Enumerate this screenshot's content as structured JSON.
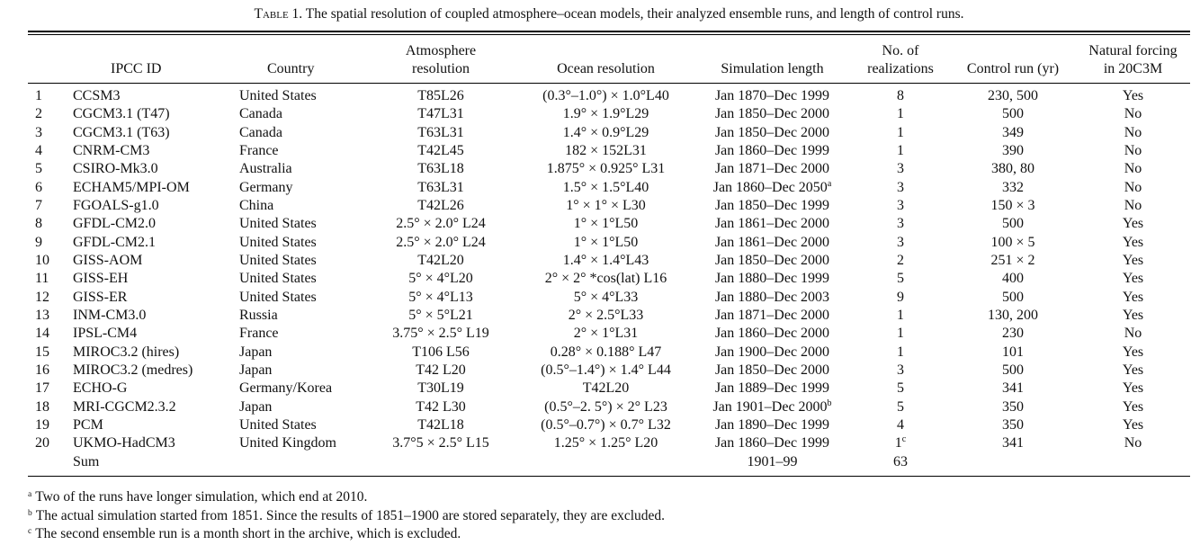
{
  "caption": {
    "label": "Table 1.",
    "text": "The spatial resolution of coupled atmosphere–ocean models, their analyzed ensemble runs, and length of control runs."
  },
  "columns": {
    "num": "",
    "ipcc_id": "IPCC ID",
    "country": "Country",
    "atm_line1": "Atmosphere",
    "atm_line2": "resolution",
    "ocean": "Ocean resolution",
    "sim": "Simulation length",
    "real_line1": "No. of",
    "real_line2": "realizations",
    "control": "Control run (yr)",
    "nat_line1": "Natural forcing",
    "nat_line2": "in 20C3M"
  },
  "rows": [
    {
      "num": "1",
      "id": "CCSM3",
      "country": "United States",
      "atm": "T85L26",
      "ocean": "(0.3°–1.0°) × 1.0°L40",
      "sim": "Jan 1870–Dec 1999",
      "sim_note": "",
      "real": "8",
      "real_note": "",
      "control": "230, 500",
      "natural": "Yes"
    },
    {
      "num": "2",
      "id": "CGCM3.1 (T47)",
      "country": "Canada",
      "atm": "T47L31",
      "ocean": "1.9° × 1.9°L29",
      "sim": "Jan 1850–Dec 2000",
      "sim_note": "",
      "real": "1",
      "real_note": "",
      "control": "500",
      "natural": "No"
    },
    {
      "num": "3",
      "id": "CGCM3.1 (T63)",
      "country": "Canada",
      "atm": "T63L31",
      "ocean": "1.4° × 0.9°L29",
      "sim": "Jan 1850–Dec 2000",
      "sim_note": "",
      "real": "1",
      "real_note": "",
      "control": "349",
      "natural": "No"
    },
    {
      "num": "4",
      "id": "CNRM-CM3",
      "country": "France",
      "atm": "T42L45",
      "ocean": "182 × 152L31",
      "sim": "Jan 1860–Dec 1999",
      "sim_note": "",
      "real": "1",
      "real_note": "",
      "control": "390",
      "natural": "No"
    },
    {
      "num": "5",
      "id": "CSIRO-Mk3.0",
      "country": "Australia",
      "atm": "T63L18",
      "ocean": "1.875° × 0.925° L31",
      "sim": "Jan 1871–Dec 2000",
      "sim_note": "",
      "real": "3",
      "real_note": "",
      "control": "380, 80",
      "natural": "No"
    },
    {
      "num": "6",
      "id": "ECHAM5/MPI-OM",
      "country": "Germany",
      "atm": "T63L31",
      "ocean": "1.5° × 1.5°L40",
      "sim": "Jan 1860–Dec 2050",
      "sim_note": "a",
      "real": "3",
      "real_note": "",
      "control": "332",
      "natural": "No"
    },
    {
      "num": "7",
      "id": "FGOALS-g1.0",
      "country": "China",
      "atm": "T42L26",
      "ocean": "1° × 1° × L30",
      "sim": "Jan 1850–Dec 1999",
      "sim_note": "",
      "real": "3",
      "real_note": "",
      "control": "150 × 3",
      "natural": "No"
    },
    {
      "num": "8",
      "id": "GFDL-CM2.0",
      "country": "United States",
      "atm": "2.5° × 2.0° L24",
      "ocean": "1° × 1°L50",
      "sim": "Jan 1861–Dec 2000",
      "sim_note": "",
      "real": "3",
      "real_note": "",
      "control": "500",
      "natural": "Yes"
    },
    {
      "num": "9",
      "id": "GFDL-CM2.1",
      "country": "United States",
      "atm": "2.5° × 2.0° L24",
      "ocean": "1° × 1°L50",
      "sim": "Jan 1861–Dec 2000",
      "sim_note": "",
      "real": "3",
      "real_note": "",
      "control": "100 × 5",
      "natural": "Yes"
    },
    {
      "num": "10",
      "id": "GISS-AOM",
      "country": "United States",
      "atm": "T42L20",
      "ocean": "1.4° × 1.4°L43",
      "sim": "Jan 1850–Dec 2000",
      "sim_note": "",
      "real": "2",
      "real_note": "",
      "control": "251 × 2",
      "natural": "Yes"
    },
    {
      "num": "11",
      "id": "GISS-EH",
      "country": "United States",
      "atm": "5° × 4°L20",
      "ocean": "2° × 2° *cos(lat) L16",
      "sim": "Jan 1880–Dec 1999",
      "sim_note": "",
      "real": "5",
      "real_note": "",
      "control": "400",
      "natural": "Yes"
    },
    {
      "num": "12",
      "id": "GISS-ER",
      "country": "United States",
      "atm": "5° × 4°L13",
      "ocean": "5° × 4°L33",
      "sim": "Jan 1880–Dec 2003",
      "sim_note": "",
      "real": "9",
      "real_note": "",
      "control": "500",
      "natural": "Yes"
    },
    {
      "num": "13",
      "id": "INM-CM3.0",
      "country": "Russia",
      "atm": "5° × 5°L21",
      "ocean": "2° × 2.5°L33",
      "sim": "Jan 1871–Dec 2000",
      "sim_note": "",
      "real": "1",
      "real_note": "",
      "control": "130, 200",
      "natural": "Yes"
    },
    {
      "num": "14",
      "id": "IPSL-CM4",
      "country": "France",
      "atm": "3.75° × 2.5° L19",
      "ocean": "2° × 1°L31",
      "sim": "Jan 1860–Dec 2000",
      "sim_note": "",
      "real": "1",
      "real_note": "",
      "control": "230",
      "natural": "No"
    },
    {
      "num": "15",
      "id": "MIROC3.2 (hires)",
      "country": "Japan",
      "atm": "T106 L56",
      "ocean": "0.28° × 0.188° L47",
      "sim": "Jan 1900–Dec 2000",
      "sim_note": "",
      "real": "1",
      "real_note": "",
      "control": "101",
      "natural": "Yes"
    },
    {
      "num": "16",
      "id": "MIROC3.2 (medres)",
      "country": "Japan",
      "atm": "T42 L20",
      "ocean": "(0.5°–1.4°) × 1.4° L44",
      "sim": "Jan 1850–Dec 2000",
      "sim_note": "",
      "real": "3",
      "real_note": "",
      "control": "500",
      "natural": "Yes"
    },
    {
      "num": "17",
      "id": "ECHO-G",
      "country": "Germany/Korea",
      "atm": "T30L19",
      "ocean": "T42L20",
      "sim": "Jan 1889–Dec 1999",
      "sim_note": "",
      "real": "5",
      "real_note": "",
      "control": "341",
      "natural": "Yes"
    },
    {
      "num": "18",
      "id": "MRI-CGCM2.3.2",
      "country": "Japan",
      "atm": "T42 L30",
      "ocean": "(0.5°–2. 5°) × 2° L23",
      "sim": "Jan 1901–Dec 2000",
      "sim_note": "b",
      "real": "5",
      "real_note": "",
      "control": "350",
      "natural": "Yes"
    },
    {
      "num": "19",
      "id": "PCM",
      "country": "United States",
      "atm": "T42L18",
      "ocean": "(0.5°–0.7°) × 0.7° L32",
      "sim": "Jan 1890–Dec 1999",
      "sim_note": "",
      "real": "4",
      "real_note": "",
      "control": "350",
      "natural": "Yes"
    },
    {
      "num": "20",
      "id": "UKMO-HadCM3",
      "country": "United Kingdom",
      "atm": "3.7°5 × 2.5° L15",
      "ocean": "1.25° × 1.25° L20",
      "sim": "Jan 1860–Dec 1999",
      "sim_note": "",
      "real": "1",
      "real_note": "c",
      "control": "341",
      "natural": "No"
    }
  ],
  "sum_row": {
    "label": "Sum",
    "sim": "1901–99",
    "real": "63"
  },
  "footnotes": [
    {
      "mark": "a",
      "text": "Two of the runs have longer simulation, which end at 2010."
    },
    {
      "mark": "b",
      "text": "The actual simulation started from 1851. Since the results of 1851–1900 are stored separately, they are excluded."
    },
    {
      "mark": "c",
      "text": "The second ensemble run is a month short in the archive, which is excluded."
    }
  ]
}
